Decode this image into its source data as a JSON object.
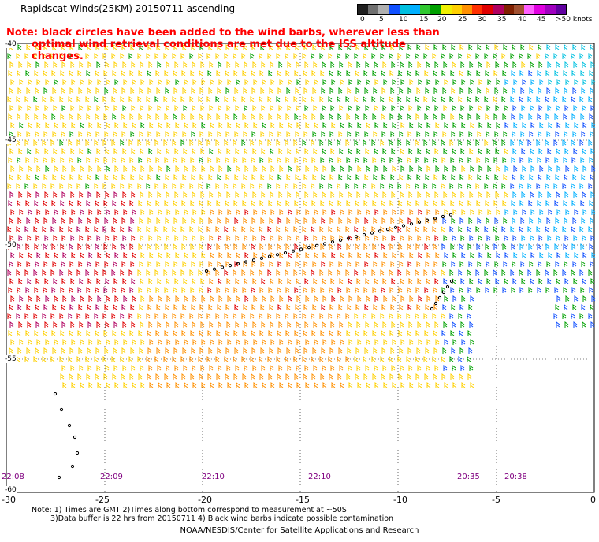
{
  "title": "Rapidscat Winds(25KM) 20150711 ascending",
  "note": {
    "line1": "Note: black circles have been added to the wind barbs, wherever less than",
    "line2": "optimal wind retrieval conditions are met due to the ISS altitude changes."
  },
  "colorbar": {
    "colors": [
      "#202020",
      "#707070",
      "#b0b0b0",
      "#1050ff",
      "#00c0e0",
      "#00b0ff",
      "#30c830",
      "#00a000",
      "#f0f000",
      "#ffd000",
      "#ff9000",
      "#ff3000",
      "#e00000",
      "#b00060",
      "#802000",
      "#a05030",
      "#ff60ff",
      "#e000e0",
      "#a000c0",
      "#6000a0"
    ],
    "labels": [
      "0",
      "5",
      "10",
      "15",
      "20",
      "25",
      "30",
      "35",
      "40",
      "45",
      ">50 knots"
    ]
  },
  "time_labels": [
    "22:08",
    "22:09",
    "22:10",
    "22:10",
    "20:35",
    "20:38"
  ],
  "lon_labels": [
    "-30",
    "-25",
    "-20",
    "-15",
    "-10",
    "-5",
    "0"
  ],
  "lat_labels": [
    "-40",
    "-45",
    "-50",
    "-55",
    "-60"
  ],
  "footnote": {
    "line1": "Note: 1) Times are GMT 2)Times along bottom correspond to measurement at ~50S",
    "line2": "3)Data buffer is 22 hrs from 20150711 4) Black wind barbs indicate possible contamination"
  },
  "credit": "NOAA/NESDIS/Center for Satellite Applications and Research"
}
